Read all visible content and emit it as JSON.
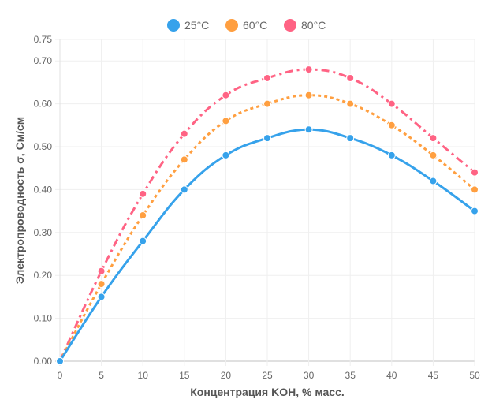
{
  "chart_data": {
    "type": "line",
    "title": "",
    "xlabel": "Концентрация KOH, % масс.",
    "ylabel": "Электропроводность σ, См/см",
    "x": [
      0,
      5,
      10,
      15,
      20,
      25,
      30,
      35,
      40,
      45,
      50
    ],
    "xlim": [
      0,
      50
    ],
    "ylim": [
      0,
      0.75
    ],
    "x_ticks": [
      "0",
      "5",
      "10",
      "15",
      "20",
      "25",
      "30",
      "35",
      "40",
      "45",
      "50"
    ],
    "y_ticks": [
      "0.00",
      "0.10",
      "0.20",
      "0.30",
      "0.40",
      "0.50",
      "0.60",
      "0.70",
      "0.75"
    ],
    "y_tick_values": [
      0,
      0.1,
      0.2,
      0.3,
      0.4,
      0.5,
      0.6,
      0.7,
      0.75
    ],
    "grid": true,
    "legend_position": "top-center",
    "series": [
      {
        "name": "25°C",
        "color": "#36A2EB",
        "line_style": "solid",
        "values": [
          0.0,
          0.15,
          0.28,
          0.4,
          0.48,
          0.52,
          0.54,
          0.52,
          0.48,
          0.42,
          0.35
        ]
      },
      {
        "name": "60°C",
        "color": "#FF9F40",
        "line_style": "dotted",
        "values": [
          0.0,
          0.18,
          0.34,
          0.47,
          0.56,
          0.6,
          0.62,
          0.6,
          0.55,
          0.48,
          0.4
        ]
      },
      {
        "name": "80°C",
        "color": "#FF6384",
        "line_style": "dash-dot",
        "values": [
          0.0,
          0.21,
          0.39,
          0.53,
          0.62,
          0.66,
          0.68,
          0.66,
          0.6,
          0.52,
          0.44
        ]
      }
    ]
  }
}
